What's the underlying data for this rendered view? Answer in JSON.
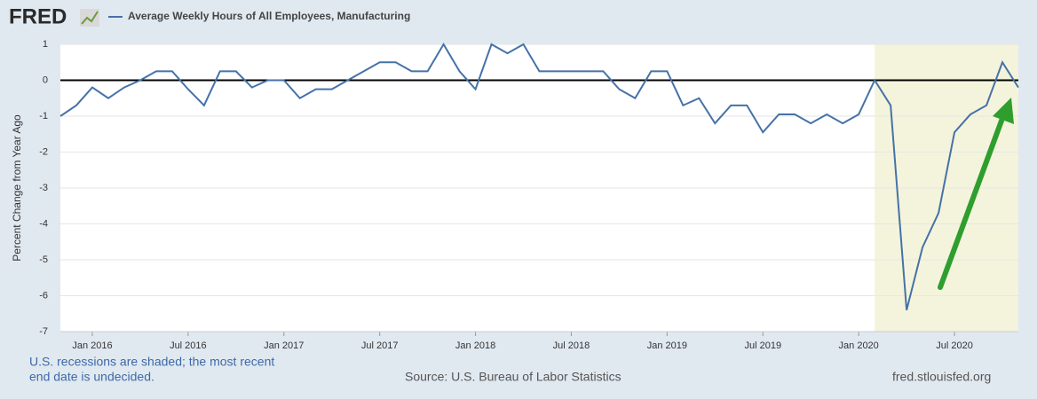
{
  "chart_data": {
    "type": "line",
    "logo": "FRED",
    "title": "Average Weekly Hours of All Employees, Manufacturing",
    "y_label": "Percent Change from Year Ago",
    "notes": [
      "U.S. recessions are shaded; the most recent",
      "end date is undecided."
    ],
    "source": "Source: U.S. Bureau of Labor Statistics",
    "url": "fred.stlouisfed.org",
    "categories": [
      null,
      null,
      "Jan 2016",
      null,
      null,
      null,
      null,
      null,
      "Jul 2016",
      null,
      null,
      null,
      null,
      null,
      "Jan 2017",
      null,
      null,
      null,
      null,
      null,
      "Jul 2017",
      null,
      null,
      null,
      null,
      null,
      "Jan 2018",
      null,
      null,
      null,
      null,
      null,
      "Jul 2018",
      null,
      null,
      null,
      null,
      null,
      "Jan 2019",
      null,
      null,
      null,
      null,
      null,
      "Jul 2019",
      null,
      null,
      null,
      null,
      null,
      "Jan 2020",
      null,
      null,
      null,
      null,
      null,
      "Jul 2020",
      null,
      null,
      null,
      null
    ],
    "series": [
      {
        "name": "Average Weekly Hours of All Employees, Manufacturing",
        "color": "#4572a7",
        "values": [
          -1.0,
          -0.7,
          -0.2,
          -0.5,
          -0.2,
          0.0,
          0.25,
          0.25,
          -0.25,
          -0.7,
          0.25,
          0.25,
          -0.2,
          0.0,
          0.0,
          -0.5,
          -0.25,
          -0.25,
          0.0,
          0.25,
          0.5,
          0.5,
          0.25,
          0.25,
          1.0,
          0.25,
          -0.25,
          1.0,
          0.75,
          1.0,
          0.25,
          0.25,
          0.25,
          0.25,
          0.25,
          -0.25,
          -0.5,
          0.25,
          0.25,
          -0.7,
          -0.5,
          -1.2,
          -0.7,
          -0.7,
          -1.45,
          -0.95,
          -0.95,
          -1.2,
          -0.95,
          -1.2,
          -0.95,
          0.0,
          -0.7,
          -6.4,
          -4.65,
          -3.7,
          -1.45,
          -0.95,
          -0.7,
          0.5,
          -0.2
        ]
      }
    ],
    "recession_start_index": 51,
    "ylim": [
      -7,
      1
    ],
    "yticks": [
      1,
      0,
      -1,
      -2,
      -3,
      -4,
      -5,
      -6,
      -7
    ],
    "grid": true
  }
}
